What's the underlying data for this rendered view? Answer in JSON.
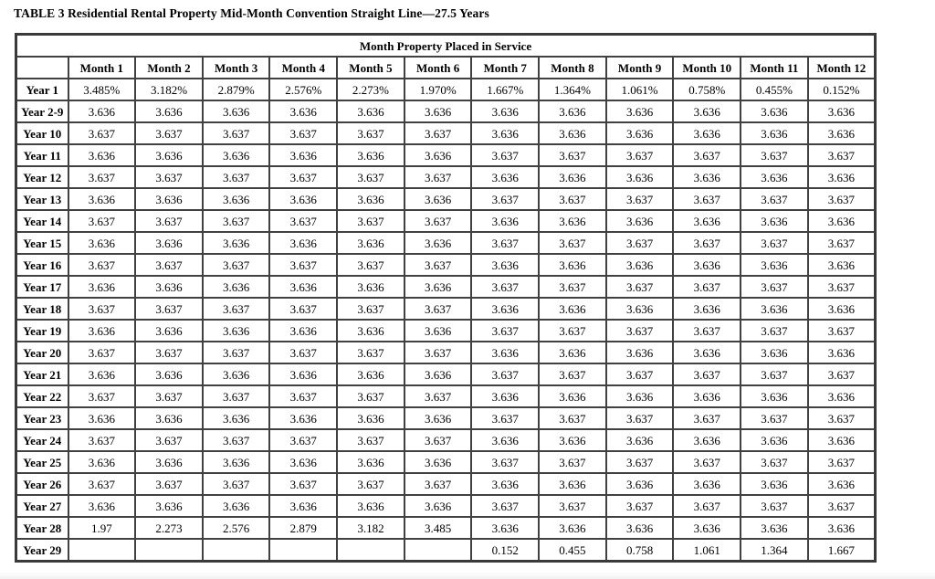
{
  "page": {
    "title": "TABLE 3 Residential Rental Property Mid-Month Convention Straight Line—27.5 Years"
  },
  "colors": {
    "background": "#ffffff",
    "text": "#000000",
    "border": "#414141"
  },
  "table": {
    "span_header": "Month Property Placed in Service",
    "corner_label": "",
    "column_headers": [
      "Month 1",
      "Month 2",
      "Month 3",
      "Month 4",
      "Month 5",
      "Month 6",
      "Month 7",
      "Month 8",
      "Month 9",
      "Month 10",
      "Month 11",
      "Month 12"
    ],
    "rows": [
      {
        "label": "Year 1",
        "values": [
          "3.485%",
          "3.182%",
          "2.879%",
          "2.576%",
          "2.273%",
          "1.970%",
          "1.667%",
          "1.364%",
          "1.061%",
          "0.758%",
          "0.455%",
          "0.152%"
        ]
      },
      {
        "label": "Year 2-9",
        "values": [
          "3.636",
          "3.636",
          "3.636",
          "3.636",
          "3.636",
          "3.636",
          "3.636",
          "3.636",
          "3.636",
          "3.636",
          "3.636",
          "3.636"
        ]
      },
      {
        "label": "Year 10",
        "values": [
          "3.637",
          "3.637",
          "3.637",
          "3.637",
          "3.637",
          "3.637",
          "3.636",
          "3.636",
          "3.636",
          "3.636",
          "3.636",
          "3.636"
        ]
      },
      {
        "label": "Year 11",
        "values": [
          "3.636",
          "3.636",
          "3.636",
          "3.636",
          "3.636",
          "3.636",
          "3.637",
          "3.637",
          "3.637",
          "3.637",
          "3.637",
          "3.637"
        ]
      },
      {
        "label": "Year 12",
        "values": [
          "3.637",
          "3.637",
          "3.637",
          "3.637",
          "3.637",
          "3.637",
          "3.636",
          "3.636",
          "3.636",
          "3.636",
          "3.636",
          "3.636"
        ]
      },
      {
        "label": "Year 13",
        "values": [
          "3.636",
          "3.636",
          "3.636",
          "3.636",
          "3.636",
          "3.636",
          "3.637",
          "3.637",
          "3.637",
          "3.637",
          "3.637",
          "3.637"
        ]
      },
      {
        "label": "Year 14",
        "values": [
          "3.637",
          "3.637",
          "3.637",
          "3.637",
          "3.637",
          "3.637",
          "3.636",
          "3.636",
          "3.636",
          "3.636",
          "3.636",
          "3.636"
        ]
      },
      {
        "label": "Year 15",
        "values": [
          "3.636",
          "3.636",
          "3.636",
          "3.636",
          "3.636",
          "3.636",
          "3.637",
          "3.637",
          "3.637",
          "3.637",
          "3.637",
          "3.637"
        ]
      },
      {
        "label": "Year 16",
        "values": [
          "3.637",
          "3.637",
          "3.637",
          "3.637",
          "3.637",
          "3.637",
          "3.636",
          "3.636",
          "3.636",
          "3.636",
          "3.636",
          "3.636"
        ]
      },
      {
        "label": "Year 17",
        "values": [
          "3.636",
          "3.636",
          "3.636",
          "3.636",
          "3.636",
          "3.636",
          "3.637",
          "3.637",
          "3.637",
          "3.637",
          "3.637",
          "3.637"
        ]
      },
      {
        "label": "Year 18",
        "values": [
          "3.637",
          "3.637",
          "3.637",
          "3.637",
          "3.637",
          "3.637",
          "3.636",
          "3.636",
          "3.636",
          "3.636",
          "3.636",
          "3.636"
        ]
      },
      {
        "label": "Year 19",
        "values": [
          "3.636",
          "3.636",
          "3.636",
          "3.636",
          "3.636",
          "3.636",
          "3.637",
          "3.637",
          "3.637",
          "3.637",
          "3.637",
          "3.637"
        ]
      },
      {
        "label": "Year 20",
        "values": [
          "3.637",
          "3.637",
          "3.637",
          "3.637",
          "3.637",
          "3.637",
          "3.636",
          "3.636",
          "3.636",
          "3.636",
          "3.636",
          "3.636"
        ]
      },
      {
        "label": "Year 21",
        "values": [
          "3.636",
          "3.636",
          "3.636",
          "3.636",
          "3.636",
          "3.636",
          "3.637",
          "3.637",
          "3.637",
          "3.637",
          "3.637",
          "3.637"
        ]
      },
      {
        "label": "Year 22",
        "values": [
          "3.637",
          "3.637",
          "3.637",
          "3.637",
          "3.637",
          "3.637",
          "3.636",
          "3.636",
          "3.636",
          "3.636",
          "3.636",
          "3.636"
        ]
      },
      {
        "label": "Year 23",
        "values": [
          "3.636",
          "3.636",
          "3.636",
          "3.636",
          "3.636",
          "3.636",
          "3.637",
          "3.637",
          "3.637",
          "3.637",
          "3.637",
          "3.637"
        ]
      },
      {
        "label": "Year 24",
        "values": [
          "3.637",
          "3.637",
          "3.637",
          "3.637",
          "3.637",
          "3.637",
          "3.636",
          "3.636",
          "3.636",
          "3.636",
          "3.636",
          "3.636"
        ]
      },
      {
        "label": "Year 25",
        "values": [
          "3.636",
          "3.636",
          "3.636",
          "3.636",
          "3.636",
          "3.636",
          "3.637",
          "3.637",
          "3.637",
          "3.637",
          "3.637",
          "3.637"
        ]
      },
      {
        "label": "Year 26",
        "values": [
          "3.637",
          "3.637",
          "3.637",
          "3.637",
          "3.637",
          "3.637",
          "3.636",
          "3.636",
          "3.636",
          "3.636",
          "3.636",
          "3.636"
        ]
      },
      {
        "label": "Year 27",
        "values": [
          "3.636",
          "3.636",
          "3.636",
          "3.636",
          "3.636",
          "3.636",
          "3.637",
          "3.637",
          "3.637",
          "3.637",
          "3.637",
          "3.637"
        ]
      },
      {
        "label": "Year 28",
        "values": [
          "1.97",
          "2.273",
          "2.576",
          "2.879",
          "3.182",
          "3.485",
          "3.636",
          "3.636",
          "3.636",
          "3.636",
          "3.636",
          "3.636"
        ]
      },
      {
        "label": "Year 29",
        "values": [
          "",
          "",
          "",
          "",
          "",
          "",
          "0.152",
          "0.455",
          "0.758",
          "1.061",
          "1.364",
          "1.667"
        ]
      }
    ]
  }
}
